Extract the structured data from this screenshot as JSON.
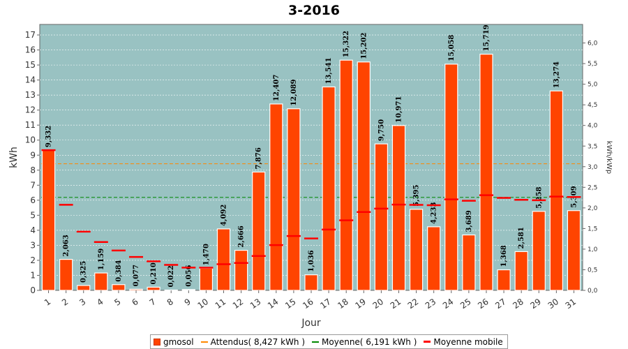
{
  "chart_data": {
    "type": "bar",
    "title": "3-2016",
    "xlabel": "Jour",
    "ylabel": "kWh",
    "ylabel_right": "kWh/kWp",
    "ylim": [
      0,
      17.7
    ],
    "y_ticks": [
      0,
      1,
      2,
      3,
      4,
      5,
      6,
      7,
      8,
      9,
      10,
      11,
      12,
      13,
      14,
      15,
      16,
      17
    ],
    "y2lim": [
      0,
      6.45
    ],
    "y2_ticks": [
      "0,0",
      "0,5",
      "1,0",
      "1,5",
      "2,0",
      "2,5",
      "3,0",
      "3,5",
      "4,0",
      "4,5",
      "5,0",
      "5,5",
      "6,0"
    ],
    "categories": [
      "1",
      "2",
      "3",
      "4",
      "5",
      "6",
      "7",
      "8",
      "9",
      "10",
      "11",
      "12",
      "13",
      "14",
      "15",
      "16",
      "17",
      "18",
      "19",
      "20",
      "21",
      "22",
      "23",
      "24",
      "25",
      "26",
      "27",
      "28",
      "29",
      "30",
      "31"
    ],
    "series": [
      {
        "name": "gmosol",
        "color": "#ff4400",
        "values": [
          9.332,
          2.063,
          0.325,
          1.159,
          0.384,
          0.077,
          0.21,
          0.022,
          0.056,
          1.47,
          4.092,
          2.666,
          7.876,
          12.407,
          12.089,
          1.036,
          13.541,
          15.322,
          15.202,
          9.75,
          10.971,
          5.395,
          4.233,
          15.058,
          3.689,
          15.719,
          1.368,
          2.581,
          5.258,
          13.274,
          5.309
        ],
        "labels": [
          "9,332",
          "2,063",
          "0,325",
          "1,159",
          "0,384",
          "0,077",
          "0,210",
          "0,022",
          "0,056",
          "1,470",
          "4,092",
          "2,666",
          "7,876",
          "12,407",
          "12,089",
          "1,036",
          "13,541",
          "15,322",
          "15,202",
          "9,750",
          "10,971",
          "5,395",
          "4,233",
          "15,058",
          "3,689",
          "15,719",
          "1,368",
          "2,581",
          "5,258",
          "13,274",
          "5,309"
        ]
      },
      {
        "name": "Moyenne mobile",
        "color": "#ff0000",
        "values": [
          9.332,
          5.698,
          3.907,
          3.22,
          2.653,
          2.224,
          1.936,
          1.697,
          1.515,
          1.51,
          1.745,
          1.822,
          2.288,
          3.011,
          3.617,
          3.455,
          4.048,
          4.662,
          5.217,
          5.444,
          5.707,
          5.693,
          5.665,
          6.056,
          5.962,
          6.337,
          6.153,
          6.025,
          6.0,
          6.243,
          6.213
        ]
      }
    ],
    "reference_lines": [
      {
        "name": "Attendus( 8,427 kWh )",
        "value": 8.427,
        "color": "#ff8800"
      },
      {
        "name": "Moyenne( 6,191 kWh )",
        "value": 6.191,
        "color": "#008800"
      }
    ],
    "grid": true,
    "legend_position": "bottom",
    "background": "#99c2c2",
    "bar_color": "#ff4400"
  },
  "legend": {
    "bars": "gmosol",
    "expected": "Attendus( 8,427 kWh )",
    "mean": "Moyenne( 6,191 kWh )",
    "moving": "Moyenne mobile"
  }
}
